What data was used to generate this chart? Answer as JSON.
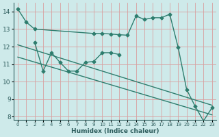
{
  "xlabel": "Humidex (Indice chaleur)",
  "bg_color": "#ceeaea",
  "grid_color": "#b8d4d4",
  "line_color": "#2e7d6e",
  "xlim": [
    -0.5,
    23.5
  ],
  "ylim": [
    7.8,
    14.5
  ],
  "yticks": [
    8,
    9,
    10,
    11,
    12,
    13,
    14
  ],
  "xticks": [
    0,
    1,
    2,
    3,
    4,
    5,
    6,
    7,
    8,
    9,
    10,
    11,
    12,
    13,
    14,
    15,
    16,
    17,
    18,
    19,
    20,
    21,
    22,
    23
  ],
  "line1_x": [
    0,
    1,
    2,
    9,
    10,
    11,
    12,
    13,
    14,
    15,
    16,
    17,
    18,
    19,
    20,
    21,
    22,
    23
  ],
  "line1_y": [
    14.15,
    13.4,
    13.0,
    12.75,
    12.75,
    12.72,
    12.68,
    12.65,
    13.75,
    13.55,
    13.65,
    13.65,
    13.85,
    11.95,
    9.55,
    8.6,
    7.75,
    8.5
  ],
  "line2_x": [
    2,
    3,
    4,
    5,
    6,
    7,
    8,
    9,
    10,
    11,
    12
  ],
  "line2_y": [
    12.25,
    10.6,
    11.65,
    11.1,
    10.6,
    10.6,
    11.1,
    11.15,
    11.65,
    11.65,
    11.55
  ],
  "line3_x": [
    0,
    23
  ],
  "line3_y": [
    12.1,
    8.65
  ],
  "line4_x": [
    0,
    23
  ],
  "line4_y": [
    11.4,
    8.1
  ],
  "markersize": 2.5,
  "linewidth": 1.0
}
